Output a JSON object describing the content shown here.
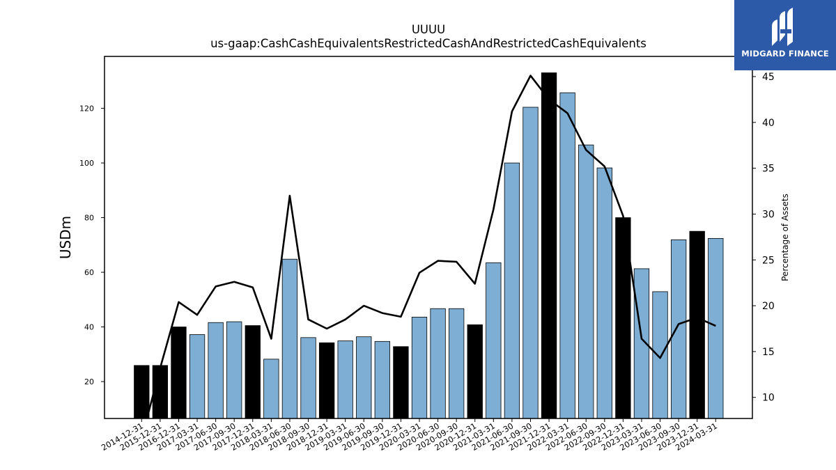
{
  "chart_data": {
    "type": "bar+line",
    "title": "UUUU",
    "subtitle": "us-gaap:CashCashEquivalentsRestrictedCashAndRestrictedCashEquivalents",
    "ylabel": "USDm",
    "y2label": "Percentage of Assets",
    "ylim": [
      6.5,
      139
    ],
    "y2lim": [
      7.7,
      47.2
    ],
    "yticks": [
      20,
      40,
      60,
      80,
      100,
      120
    ],
    "y2ticks": [
      10,
      15,
      20,
      25,
      30,
      35,
      40,
      45
    ],
    "categories": [
      "2014-12-31",
      "2015-12-31",
      "2016-12-31",
      "2017-03-31",
      "2017-06-30",
      "2017-09-30",
      "2017-12-31",
      "2018-03-31",
      "2018-06-30",
      "2018-09-30",
      "2018-12-31",
      "2019-03-31",
      "2019-06-30",
      "2019-09-30",
      "2019-12-31",
      "2020-03-31",
      "2020-06-30",
      "2020-09-30",
      "2020-12-31",
      "2021-03-31",
      "2021-06-30",
      "2021-09-30",
      "2021-12-31",
      "2022-03-31",
      "2022-06-30",
      "2022-09-30",
      "2022-12-31",
      "2023-03-31",
      "2023-06-30",
      "2023-09-30",
      "2023-12-31",
      "2024-03-31"
    ],
    "series": [
      {
        "kind": "bar",
        "values": [
          25.9,
          25.9,
          40.0,
          37.2,
          41.6,
          41.9,
          40.5,
          28.2,
          64.8,
          36.1,
          34.2,
          34.9,
          36.4,
          34.7,
          32.8,
          43.6,
          46.7,
          46.7,
          40.8,
          63.5,
          100.0,
          120.4,
          133.0,
          125.7,
          106.6,
          98.2,
          80.0,
          61.3,
          52.9,
          71.9,
          75.0,
          72.4
        ],
        "annual": [
          true,
          true,
          true,
          false,
          false,
          false,
          true,
          false,
          false,
          false,
          true,
          false,
          false,
          false,
          true,
          false,
          false,
          false,
          true,
          false,
          false,
          false,
          true,
          false,
          false,
          false,
          true,
          false,
          false,
          false,
          true,
          false
        ]
      },
      {
        "kind": "line",
        "axis": "right",
        "values": [
          5.5,
          13.2,
          20.4,
          19.0,
          22.1,
          22.6,
          22.0,
          16.4,
          32.0,
          18.5,
          17.5,
          18.5,
          20.0,
          19.2,
          18.8,
          23.6,
          24.9,
          24.8,
          22.4,
          30.5,
          41.2,
          45.1,
          42.5,
          41.0,
          37.0,
          35.2,
          29.8,
          16.4,
          14.3,
          18.0,
          18.7,
          17.8
        ]
      }
    ],
    "colors": {
      "annual_bar": "#000000",
      "quarter_bar": "#7eaed3",
      "line": "#000000"
    }
  },
  "logo": {
    "text": "MIDGARD FINANCE",
    "bg": "#2c5aa8"
  }
}
